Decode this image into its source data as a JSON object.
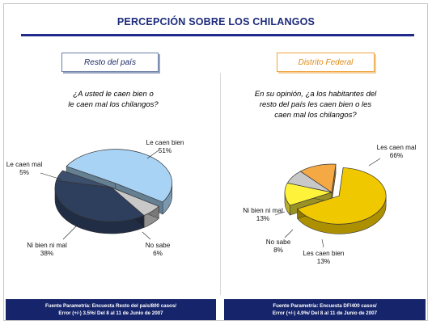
{
  "title": "PERCEPCIÓN SOBRE LOS CHILANGOS",
  "tabs": {
    "left": "Resto del país",
    "right": "Distrito Federal"
  },
  "questions": {
    "left": [
      "¿A usted le caen bien o",
      "le caen mal los chilangos?"
    ],
    "right": [
      "En su opinión, ¿a los habitantes del",
      "resto del país les caen bien o les",
      "caen mal los chilangos?"
    ]
  },
  "colors": {
    "navy": "#15246b",
    "title": "#1c2a7a",
    "orange": "#e08a12"
  },
  "chart_data": [
    {
      "type": "pie",
      "title": "Resto del país",
      "categories": [
        "Le caen bien",
        "No sabe",
        "Ni bien ni mal",
        "Le caen mal"
      ],
      "values": [
        51,
        6,
        38,
        5
      ],
      "labels": [
        {
          "name": "Le caen bien",
          "value": "51%"
        },
        {
          "name": "No sabe",
          "value": "6%"
        },
        {
          "name": "Ni bien ni mal",
          "value": "38%"
        },
        {
          "name": "Le caen mal",
          "value": "5%"
        }
      ],
      "colors": [
        "#a9d3f5",
        "#c8c8c8",
        "#2e3f5e",
        "#3c506e"
      ],
      "exploded": "Le caen bien"
    },
    {
      "type": "pie",
      "title": "Distrito Federal",
      "categories": [
        "Les caen mal",
        "Les caen bien",
        "No sabe",
        "Ni bien ni mal"
      ],
      "values": [
        66,
        13,
        8,
        13
      ],
      "labels": [
        {
          "name": "Les caen mal",
          "value": "66%"
        },
        {
          "name": "Les caen bien",
          "value": "13%"
        },
        {
          "name": "No sabe",
          "value": "8%"
        },
        {
          "name": "Ni bien ni mal",
          "value": "13%"
        }
      ],
      "colors": [
        "#f0c800",
        "#fff23a",
        "#c8c8c8",
        "#f5a945"
      ],
      "exploded": "Les caen mal"
    }
  ],
  "footers": {
    "left": [
      "Fuente Parametría: Encuesta Resto del país/800 casos/",
      "Error (+/-) 3.5%/ Del 8 al 11 de Junio de 2007"
    ],
    "right": [
      "Fuente Parametría: Encuesta DF/400 casos/",
      "Error (+/-) 4.9%/ Del 8 al 11 de Junio de 2007"
    ]
  }
}
